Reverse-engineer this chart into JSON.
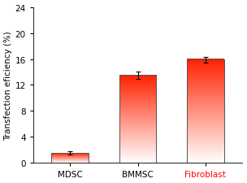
{
  "categories": [
    "MDSC",
    "BMMSC",
    "Fibroblast"
  ],
  "values": [
    1.5,
    13.5,
    15.9
  ],
  "errors": [
    0.25,
    0.6,
    0.45
  ],
  "ylabel": "Transfection eficiency (%)",
  "ylim": [
    0,
    24
  ],
  "yticks": [
    0,
    4,
    8,
    12,
    16,
    20,
    24
  ],
  "bar_width": 0.55,
  "label_colors": [
    "#000000",
    "#000000",
    "#ff0000"
  ],
  "bar_top_color": "#ff2200",
  "bar_bottom_color": "#ffffff",
  "bar_edge_color": "#555555",
  "bg_color": "#ffffff",
  "fig_bg": "#ffffff",
  "axis_fontsize": 7.5,
  "tick_fontsize": 7.5,
  "ylabel_fontsize": 7.5
}
